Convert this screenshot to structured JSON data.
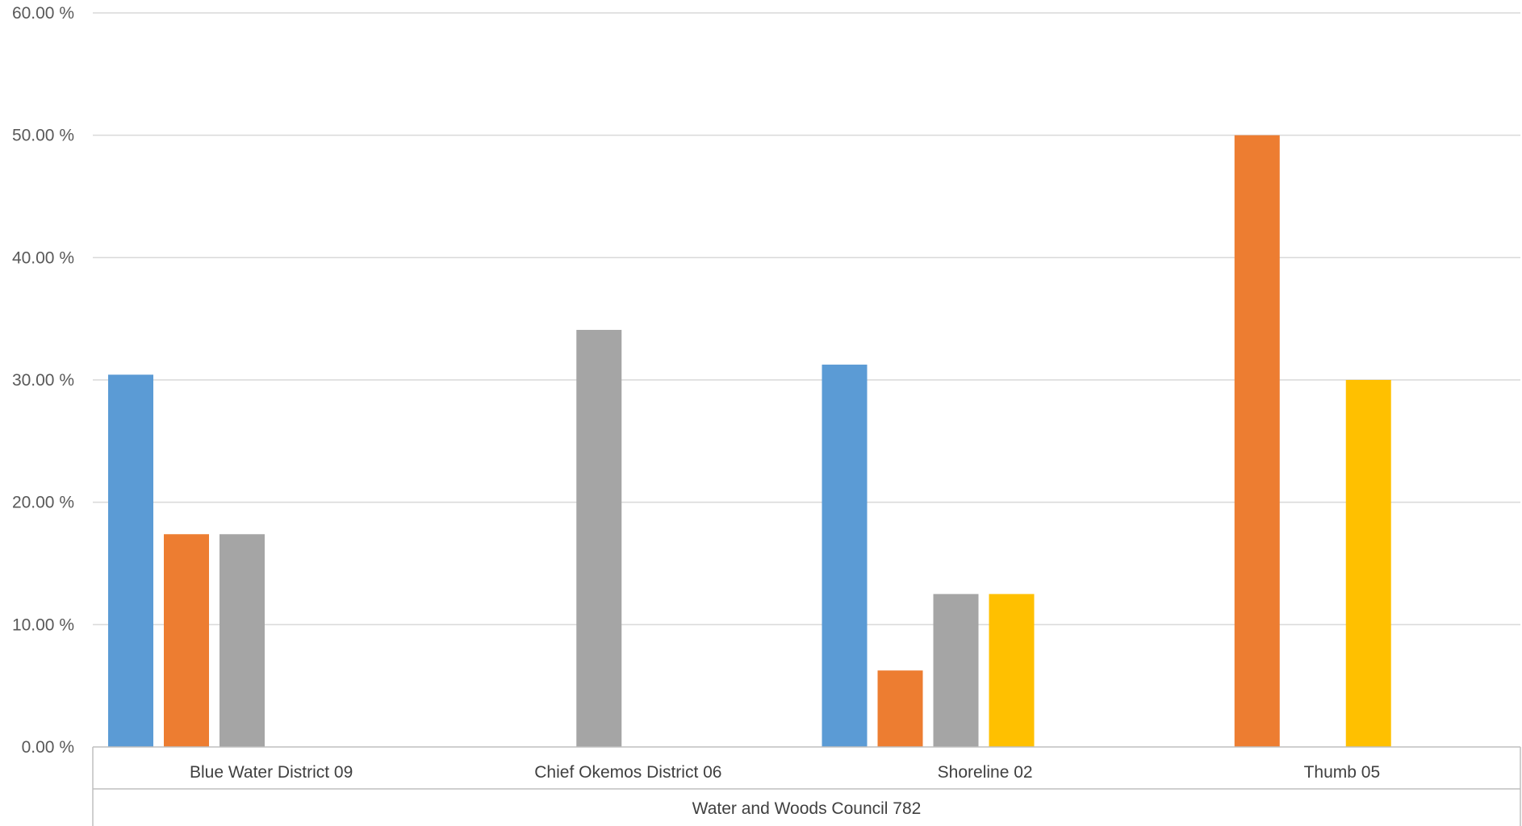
{
  "chart_data": {
    "type": "bar",
    "title": "",
    "xlabel": "",
    "ylabel": "",
    "ylim": [
      0,
      60
    ],
    "yticks": [
      "0.00 %",
      "10.00 %",
      "20.00 %",
      "30.00 %",
      "40.00 %",
      "50.00 %",
      "60.00 %"
    ],
    "ytick_values": [
      0,
      10,
      20,
      30,
      40,
      50,
      60
    ],
    "grid": true,
    "legend": "none",
    "categories": [
      "Blue Water District 09",
      "Chief Okemos District 06",
      "Shoreline 02",
      "Thumb 05"
    ],
    "group_label": "Water and Woods Council 782",
    "series": [
      {
        "color": "#5b9bd5",
        "values": [
          30.43,
          null,
          31.25,
          null
        ]
      },
      {
        "color": "#ed7d31",
        "values": [
          17.39,
          null,
          6.25,
          50.0
        ]
      },
      {
        "color": "#a5a5a5",
        "values": [
          17.39,
          34.09,
          12.5,
          null
        ]
      },
      {
        "color": "#ffc000",
        "values": [
          null,
          null,
          12.5,
          30.0
        ]
      }
    ]
  }
}
